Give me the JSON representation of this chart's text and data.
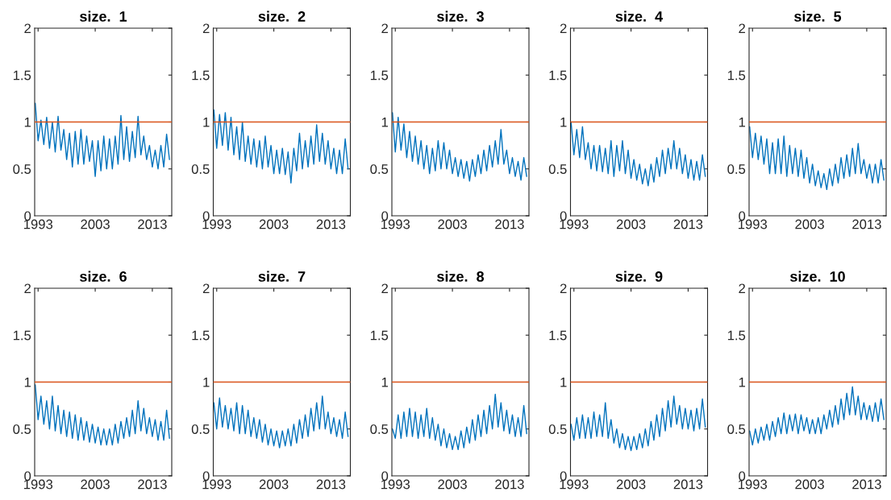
{
  "chart_data": [
    {
      "type": "line",
      "title": "size.  1",
      "x": [
        1992.5,
        1993,
        1993.5,
        1994,
        1994.5,
        1995,
        1995.5,
        1996,
        1996.5,
        1997,
        1997.5,
        1998,
        1998.5,
        1999,
        1999.5,
        2000,
        2000.5,
        2001,
        2001.5,
        2002,
        2002.5,
        2003,
        2003.5,
        2004,
        2004.5,
        2005,
        2005.5,
        2006,
        2006.5,
        2007,
        2007.5,
        2008,
        2008.5,
        2009,
        2009.5,
        2010,
        2010.5,
        2011,
        2011.5,
        2012,
        2012.5,
        2013,
        2013.5,
        2014,
        2014.5,
        2015,
        2015.5,
        2016
      ],
      "series": [
        {
          "color": "#0072bd",
          "values": [
            1.2,
            0.8,
            1.02,
            0.76,
            1.05,
            0.72,
            1.0,
            0.68,
            1.06,
            0.7,
            0.92,
            0.6,
            0.88,
            0.52,
            0.9,
            0.55,
            0.92,
            0.55,
            0.85,
            0.58,
            0.8,
            0.42,
            0.8,
            0.48,
            0.85,
            0.5,
            0.82,
            0.5,
            0.85,
            0.55,
            1.07,
            0.6,
            0.95,
            0.58,
            0.9,
            0.62,
            1.06,
            0.65,
            0.85,
            0.6,
            0.75,
            0.52,
            0.7,
            0.5,
            0.75,
            0.52,
            0.87,
            0.6
          ]
        }
      ],
      "ref_lines": [
        {
          "axis": "y",
          "value": 1,
          "color": "#d95319"
        }
      ],
      "xlim": [
        1992.4,
        2016.4
      ],
      "xticks": [
        1993,
        2003,
        2013
      ],
      "ylim": [
        0,
        2
      ],
      "yticks": [
        0,
        0.5,
        1,
        1.5,
        2
      ]
    },
    {
      "type": "line",
      "title": "size.  2",
      "x": [
        1992.5,
        1993,
        1993.5,
        1994,
        1994.5,
        1995,
        1995.5,
        1996,
        1996.5,
        1997,
        1997.5,
        1998,
        1998.5,
        1999,
        1999.5,
        2000,
        2000.5,
        2001,
        2001.5,
        2002,
        2002.5,
        2003,
        2003.5,
        2004,
        2004.5,
        2005,
        2005.5,
        2006,
        2006.5,
        2007,
        2007.5,
        2008,
        2008.5,
        2009,
        2009.5,
        2010,
        2010.5,
        2011,
        2011.5,
        2012,
        2012.5,
        2013,
        2013.5,
        2014,
        2014.5,
        2015,
        2015.5,
        2016
      ],
      "series": [
        {
          "color": "#0072bd",
          "values": [
            1.13,
            0.72,
            1.08,
            0.75,
            1.1,
            0.7,
            1.05,
            0.65,
            0.95,
            0.6,
            1.0,
            0.58,
            0.85,
            0.55,
            0.82,
            0.52,
            0.8,
            0.5,
            0.85,
            0.52,
            0.75,
            0.45,
            0.7,
            0.45,
            0.72,
            0.44,
            0.68,
            0.35,
            0.72,
            0.48,
            0.88,
            0.5,
            0.8,
            0.52,
            0.85,
            0.55,
            0.97,
            0.58,
            0.88,
            0.55,
            0.8,
            0.5,
            0.72,
            0.45,
            0.7,
            0.45,
            0.82,
            0.5
          ]
        }
      ],
      "ref_lines": [
        {
          "axis": "y",
          "value": 1,
          "color": "#d95319"
        }
      ],
      "xlim": [
        1992.4,
        2016.4
      ],
      "xticks": [
        1993,
        2003,
        2013
      ],
      "ylim": [
        0,
        2
      ],
      "yticks": [
        0,
        0.5,
        1,
        1.5,
        2
      ]
    },
    {
      "type": "line",
      "title": "size.  3",
      "x": [
        1992.5,
        1993,
        1993.5,
        1994,
        1994.5,
        1995,
        1995.5,
        1996,
        1996.5,
        1997,
        1997.5,
        1998,
        1998.5,
        1999,
        1999.5,
        2000,
        2000.5,
        2001,
        2001.5,
        2002,
        2002.5,
        2003,
        2003.5,
        2004,
        2004.5,
        2005,
        2005.5,
        2006,
        2006.5,
        2007,
        2007.5,
        2008,
        2008.5,
        2009,
        2009.5,
        2010,
        2010.5,
        2011,
        2011.5,
        2012,
        2012.5,
        2013,
        2013.5,
        2014,
        2014.5,
        2015,
        2015.5,
        2016
      ],
      "series": [
        {
          "color": "#0072bd",
          "values": [
            1.1,
            0.68,
            1.05,
            0.7,
            0.98,
            0.62,
            0.9,
            0.58,
            0.85,
            0.55,
            0.8,
            0.5,
            0.75,
            0.45,
            0.72,
            0.48,
            0.8,
            0.5,
            0.78,
            0.5,
            0.7,
            0.45,
            0.62,
            0.42,
            0.6,
            0.4,
            0.58,
            0.37,
            0.6,
            0.42,
            0.65,
            0.45,
            0.7,
            0.48,
            0.75,
            0.52,
            0.8,
            0.55,
            0.92,
            0.55,
            0.7,
            0.45,
            0.62,
            0.42,
            0.58,
            0.38,
            0.62,
            0.42
          ]
        }
      ],
      "ref_lines": [
        {
          "axis": "y",
          "value": 1,
          "color": "#d95319"
        }
      ],
      "xlim": [
        1992.4,
        2016.4
      ],
      "xticks": [
        1993,
        2003,
        2013
      ],
      "ylim": [
        0,
        2
      ],
      "yticks": [
        0,
        0.5,
        1,
        1.5,
        2
      ]
    },
    {
      "type": "line",
      "title": "size.  4",
      "x": [
        1992.5,
        1993,
        1993.5,
        1994,
        1994.5,
        1995,
        1995.5,
        1996,
        1996.5,
        1997,
        1997.5,
        1998,
        1998.5,
        1999,
        1999.5,
        2000,
        2000.5,
        2001,
        2001.5,
        2002,
        2002.5,
        2003,
        2003.5,
        2004,
        2004.5,
        2005,
        2005.5,
        2006,
        2006.5,
        2007,
        2007.5,
        2008,
        2008.5,
        2009,
        2009.5,
        2010,
        2010.5,
        2011,
        2011.5,
        2012,
        2012.5,
        2013,
        2013.5,
        2014,
        2014.5,
        2015,
        2015.5,
        2016
      ],
      "series": [
        {
          "color": "#0072bd",
          "values": [
            1.0,
            0.65,
            0.92,
            0.62,
            0.95,
            0.6,
            0.78,
            0.5,
            0.75,
            0.48,
            0.75,
            0.47,
            0.72,
            0.45,
            0.8,
            0.42,
            0.75,
            0.48,
            0.8,
            0.45,
            0.7,
            0.4,
            0.6,
            0.38,
            0.55,
            0.34,
            0.5,
            0.32,
            0.55,
            0.36,
            0.62,
            0.42,
            0.7,
            0.45,
            0.72,
            0.5,
            0.8,
            0.5,
            0.72,
            0.45,
            0.65,
            0.4,
            0.6,
            0.38,
            0.58,
            0.38,
            0.65,
            0.42
          ]
        }
      ],
      "ref_lines": [
        {
          "axis": "y",
          "value": 1,
          "color": "#d95319"
        }
      ],
      "xlim": [
        1992.4,
        2016.4
      ],
      "xticks": [
        1993,
        2003,
        2013
      ],
      "ylim": [
        0,
        2
      ],
      "yticks": [
        0,
        0.5,
        1,
        1.5,
        2
      ]
    },
    {
      "type": "line",
      "title": "size.  5",
      "x": [
        1992.5,
        1993,
        1993.5,
        1994,
        1994.5,
        1995,
        1995.5,
        1996,
        1996.5,
        1997,
        1997.5,
        1998,
        1998.5,
        1999,
        1999.5,
        2000,
        2000.5,
        2001,
        2001.5,
        2002,
        2002.5,
        2003,
        2003.5,
        2004,
        2004.5,
        2005,
        2005.5,
        2006,
        2006.5,
        2007,
        2007.5,
        2008,
        2008.5,
        2009,
        2009.5,
        2010,
        2010.5,
        2011,
        2011.5,
        2012,
        2012.5,
        2013,
        2013.5,
        2014,
        2014.5,
        2015,
        2015.5,
        2016
      ],
      "series": [
        {
          "color": "#0072bd",
          "values": [
            0.95,
            0.62,
            0.88,
            0.6,
            0.85,
            0.55,
            0.82,
            0.45,
            0.78,
            0.45,
            0.82,
            0.45,
            0.85,
            0.42,
            0.75,
            0.45,
            0.72,
            0.42,
            0.7,
            0.4,
            0.62,
            0.35,
            0.55,
            0.32,
            0.48,
            0.3,
            0.45,
            0.28,
            0.5,
            0.32,
            0.55,
            0.35,
            0.62,
            0.4,
            0.65,
            0.42,
            0.72,
            0.45,
            0.77,
            0.45,
            0.6,
            0.4,
            0.55,
            0.35,
            0.55,
            0.35,
            0.6,
            0.38
          ]
        }
      ],
      "ref_lines": [
        {
          "axis": "y",
          "value": 1,
          "color": "#d95319"
        }
      ],
      "xlim": [
        1992.4,
        2016.4
      ],
      "xticks": [
        1993,
        2003,
        2013
      ],
      "ylim": [
        0,
        2
      ],
      "yticks": [
        0,
        0.5,
        1,
        1.5,
        2
      ]
    },
    {
      "type": "line",
      "title": "size.  6",
      "x": [
        1992.5,
        1993,
        1993.5,
        1994,
        1994.5,
        1995,
        1995.5,
        1996,
        1996.5,
        1997,
        1997.5,
        1998,
        1998.5,
        1999,
        1999.5,
        2000,
        2000.5,
        2001,
        2001.5,
        2002,
        2002.5,
        2003,
        2003.5,
        2004,
        2004.5,
        2005,
        2005.5,
        2006,
        2006.5,
        2007,
        2007.5,
        2008,
        2008.5,
        2009,
        2009.5,
        2010,
        2010.5,
        2011,
        2011.5,
        2012,
        2012.5,
        2013,
        2013.5,
        2014,
        2014.5,
        2015,
        2015.5,
        2016
      ],
      "series": [
        {
          "color": "#0072bd",
          "values": [
            0.97,
            0.6,
            0.85,
            0.55,
            0.8,
            0.5,
            0.85,
            0.48,
            0.75,
            0.45,
            0.7,
            0.42,
            0.68,
            0.4,
            0.65,
            0.38,
            0.62,
            0.38,
            0.58,
            0.36,
            0.55,
            0.35,
            0.52,
            0.33,
            0.5,
            0.33,
            0.5,
            0.33,
            0.55,
            0.35,
            0.58,
            0.4,
            0.62,
            0.42,
            0.7,
            0.45,
            0.8,
            0.48,
            0.72,
            0.45,
            0.62,
            0.42,
            0.6,
            0.38,
            0.58,
            0.38,
            0.7,
            0.4
          ]
        }
      ],
      "ref_lines": [
        {
          "axis": "y",
          "value": 1,
          "color": "#d95319"
        }
      ],
      "xlim": [
        1992.4,
        2016.4
      ],
      "xticks": [
        1993,
        2003,
        2013
      ],
      "ylim": [
        0,
        2
      ],
      "yticks": [
        0,
        0.5,
        1,
        1.5,
        2
      ]
    },
    {
      "type": "line",
      "title": "size.  7",
      "x": [
        1992.5,
        1993,
        1993.5,
        1994,
        1994.5,
        1995,
        1995.5,
        1996,
        1996.5,
        1997,
        1997.5,
        1998,
        1998.5,
        1999,
        1999.5,
        2000,
        2000.5,
        2001,
        2001.5,
        2002,
        2002.5,
        2003,
        2003.5,
        2004,
        2004.5,
        2005,
        2005.5,
        2006,
        2006.5,
        2007,
        2007.5,
        2008,
        2008.5,
        2009,
        2009.5,
        2010,
        2010.5,
        2011,
        2011.5,
        2012,
        2012.5,
        2013,
        2013.5,
        2014,
        2014.5,
        2015,
        2015.5,
        2016
      ],
      "series": [
        {
          "color": "#0072bd",
          "values": [
            0.78,
            0.5,
            0.83,
            0.52,
            0.75,
            0.5,
            0.72,
            0.48,
            0.78,
            0.45,
            0.75,
            0.45,
            0.7,
            0.42,
            0.62,
            0.4,
            0.6,
            0.36,
            0.55,
            0.33,
            0.5,
            0.32,
            0.48,
            0.3,
            0.48,
            0.32,
            0.5,
            0.32,
            0.55,
            0.35,
            0.6,
            0.4,
            0.65,
            0.42,
            0.72,
            0.48,
            0.78,
            0.5,
            0.85,
            0.5,
            0.68,
            0.45,
            0.62,
            0.42,
            0.6,
            0.4,
            0.68,
            0.42
          ]
        }
      ],
      "ref_lines": [
        {
          "axis": "y",
          "value": 1,
          "color": "#d95319"
        }
      ],
      "xlim": [
        1992.4,
        2016.4
      ],
      "xticks": [
        1993,
        2003,
        2013
      ],
      "ylim": [
        0,
        2
      ],
      "yticks": [
        0,
        0.5,
        1,
        1.5,
        2
      ]
    },
    {
      "type": "line",
      "title": "size.  8",
      "x": [
        1992.5,
        1993,
        1993.5,
        1994,
        1994.5,
        1995,
        1995.5,
        1996,
        1996.5,
        1997,
        1997.5,
        1998,
        1998.5,
        1999,
        1999.5,
        2000,
        2000.5,
        2001,
        2001.5,
        2002,
        2002.5,
        2003,
        2003.5,
        2004,
        2004.5,
        2005,
        2005.5,
        2006,
        2006.5,
        2007,
        2007.5,
        2008,
        2008.5,
        2009,
        2009.5,
        2010,
        2010.5,
        2011,
        2011.5,
        2012,
        2012.5,
        2013,
        2013.5,
        2014,
        2014.5,
        2015,
        2015.5,
        2016
      ],
      "series": [
        {
          "color": "#0072bd",
          "values": [
            0.5,
            0.4,
            0.65,
            0.4,
            0.68,
            0.42,
            0.72,
            0.42,
            0.68,
            0.4,
            0.65,
            0.42,
            0.72,
            0.4,
            0.62,
            0.38,
            0.55,
            0.32,
            0.5,
            0.3,
            0.45,
            0.28,
            0.42,
            0.28,
            0.48,
            0.3,
            0.52,
            0.35,
            0.6,
            0.38,
            0.65,
            0.42,
            0.7,
            0.45,
            0.75,
            0.5,
            0.87,
            0.52,
            0.78,
            0.48,
            0.7,
            0.45,
            0.65,
            0.42,
            0.62,
            0.42,
            0.75,
            0.45
          ]
        }
      ],
      "ref_lines": [
        {
          "axis": "y",
          "value": 1,
          "color": "#d95319"
        }
      ],
      "xlim": [
        1992.4,
        2016.4
      ],
      "xticks": [
        1993,
        2003,
        2013
      ],
      "ylim": [
        0,
        2
      ],
      "yticks": [
        0,
        0.5,
        1,
        1.5,
        2
      ]
    },
    {
      "type": "line",
      "title": "size.  9",
      "x": [
        1992.5,
        1993,
        1993.5,
        1994,
        1994.5,
        1995,
        1995.5,
        1996,
        1996.5,
        1997,
        1997.5,
        1998,
        1998.5,
        1999,
        1999.5,
        2000,
        2000.5,
        2001,
        2001.5,
        2002,
        2002.5,
        2003,
        2003.5,
        2004,
        2004.5,
        2005,
        2005.5,
        2006,
        2006.5,
        2007,
        2007.5,
        2008,
        2008.5,
        2009,
        2009.5,
        2010,
        2010.5,
        2011,
        2011.5,
        2012,
        2012.5,
        2013,
        2013.5,
        2014,
        2014.5,
        2015,
        2015.5,
        2016
      ],
      "series": [
        {
          "color": "#0072bd",
          "values": [
            0.55,
            0.38,
            0.62,
            0.4,
            0.65,
            0.4,
            0.62,
            0.4,
            0.68,
            0.42,
            0.65,
            0.42,
            0.78,
            0.4,
            0.6,
            0.35,
            0.5,
            0.3,
            0.45,
            0.28,
            0.42,
            0.27,
            0.42,
            0.28,
            0.45,
            0.3,
            0.5,
            0.32,
            0.58,
            0.38,
            0.65,
            0.42,
            0.72,
            0.48,
            0.8,
            0.52,
            0.85,
            0.55,
            0.75,
            0.5,
            0.72,
            0.5,
            0.7,
            0.48,
            0.72,
            0.5,
            0.82,
            0.52
          ]
        }
      ],
      "ref_lines": [
        {
          "axis": "y",
          "value": 1,
          "color": "#d95319"
        }
      ],
      "xlim": [
        1992.4,
        2016.4
      ],
      "xticks": [
        1993,
        2003,
        2013
      ],
      "ylim": [
        0,
        2
      ],
      "yticks": [
        0,
        0.5,
        1,
        1.5,
        2
      ]
    },
    {
      "type": "line",
      "title": "size.  10",
      "x": [
        1992.5,
        1993,
        1993.5,
        1994,
        1994.5,
        1995,
        1995.5,
        1996,
        1996.5,
        1997,
        1997.5,
        1998,
        1998.5,
        1999,
        1999.5,
        2000,
        2000.5,
        2001,
        2001.5,
        2002,
        2002.5,
        2003,
        2003.5,
        2004,
        2004.5,
        2005,
        2005.5,
        2006,
        2006.5,
        2007,
        2007.5,
        2008,
        2008.5,
        2009,
        2009.5,
        2010,
        2010.5,
        2011,
        2011.5,
        2012,
        2012.5,
        2013,
        2013.5,
        2014,
        2014.5,
        2015,
        2015.5,
        2016
      ],
      "series": [
        {
          "color": "#0072bd",
          "values": [
            0.48,
            0.33,
            0.5,
            0.35,
            0.52,
            0.38,
            0.55,
            0.38,
            0.58,
            0.42,
            0.62,
            0.45,
            0.67,
            0.45,
            0.65,
            0.48,
            0.66,
            0.45,
            0.65,
            0.48,
            0.62,
            0.45,
            0.6,
            0.45,
            0.62,
            0.45,
            0.65,
            0.5,
            0.7,
            0.52,
            0.75,
            0.55,
            0.82,
            0.6,
            0.88,
            0.65,
            0.95,
            0.65,
            0.85,
            0.6,
            0.78,
            0.6,
            0.75,
            0.58,
            0.78,
            0.58,
            0.82,
            0.6
          ]
        }
      ],
      "ref_lines": [
        {
          "axis": "y",
          "value": 1,
          "color": "#d95319"
        }
      ],
      "xlim": [
        1992.4,
        2016.4
      ],
      "xticks": [
        1993,
        2003,
        2013
      ],
      "ylim": [
        0,
        2
      ],
      "yticks": [
        0,
        0.5,
        1,
        1.5,
        2
      ]
    }
  ]
}
